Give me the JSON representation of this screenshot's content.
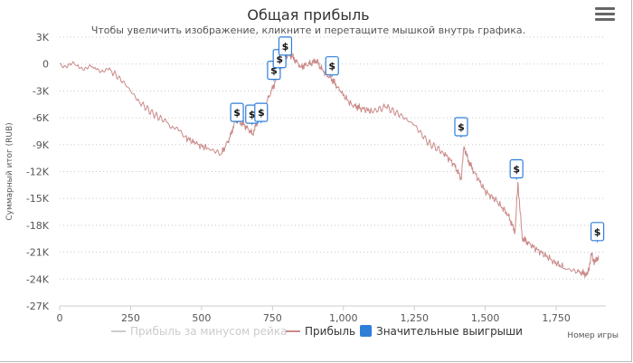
{
  "menu_icon": "hamburger-menu-icon",
  "chart_data": {
    "type": "line",
    "title": "Общая прибыль",
    "subtitle": "Чтобы увеличить изображение, кликните и перетащите мышкой внутрь графика.",
    "xlabel": "Номер игры",
    "ylabel": "Суммарный итог (RUB)",
    "xlim": [
      0,
      1925
    ],
    "ylim": [
      -27000,
      3000
    ],
    "x_ticks": [
      0,
      250,
      500,
      750,
      1000,
      1250,
      1500,
      1750
    ],
    "x_tick_labels": [
      "0",
      "250",
      "500",
      "750",
      "1,000",
      "1,250",
      "1,500",
      "1,750"
    ],
    "y_ticks": [
      3000,
      0,
      -3000,
      -6000,
      -9000,
      -12000,
      -15000,
      -18000,
      -21000,
      -24000,
      -27000
    ],
    "y_tick_labels": [
      "3K",
      "0",
      "-3K",
      "-6K",
      "-9K",
      "-12K",
      "-15K",
      "-18K",
      "-21K",
      "-24K",
      "-27K"
    ],
    "grid": "horizontal dotted",
    "legend_position": "bottom",
    "colors": {
      "profit": "#c98a88",
      "profit_without_rake": "#cccccc",
      "big_wins": "#2f7ed8",
      "grid": "#c8c8c8"
    },
    "series": [
      {
        "name": "Прибыль",
        "type": "line",
        "color": "#c98a88",
        "points": [
          [
            0,
            0
          ],
          [
            60,
            -200
          ],
          [
            120,
            -500
          ],
          [
            180,
            -700
          ],
          [
            230,
            -2200
          ],
          [
            280,
            -4200
          ],
          [
            330,
            -5600
          ],
          [
            380,
            -6500
          ],
          [
            440,
            -8100
          ],
          [
            480,
            -8900
          ],
          [
            520,
            -9400
          ],
          [
            570,
            -10000
          ],
          [
            600,
            -8200
          ],
          [
            620,
            -6200
          ],
          [
            650,
            -6800
          ],
          [
            680,
            -7800
          ],
          [
            700,
            -6200
          ],
          [
            730,
            -4200
          ],
          [
            760,
            -2000
          ],
          [
            775,
            -700
          ],
          [
            790,
            300
          ],
          [
            805,
            1200
          ],
          [
            820,
            800
          ],
          [
            850,
            -300
          ],
          [
            880,
            0
          ],
          [
            905,
            400
          ],
          [
            930,
            -900
          ],
          [
            960,
            -1700
          ],
          [
            990,
            -3100
          ],
          [
            1030,
            -4600
          ],
          [
            1060,
            -4900
          ],
          [
            1100,
            -5300
          ],
          [
            1150,
            -4800
          ],
          [
            1200,
            -5700
          ],
          [
            1250,
            -6800
          ],
          [
            1300,
            -8800
          ],
          [
            1350,
            -9800
          ],
          [
            1390,
            -11200
          ],
          [
            1415,
            -12800
          ],
          [
            1425,
            -9200
          ],
          [
            1440,
            -10800
          ],
          [
            1460,
            -12000
          ],
          [
            1500,
            -14200
          ],
          [
            1540,
            -15300
          ],
          [
            1580,
            -16800
          ],
          [
            1605,
            -18800
          ],
          [
            1615,
            -13200
          ],
          [
            1630,
            -19400
          ],
          [
            1660,
            -20200
          ],
          [
            1700,
            -21100
          ],
          [
            1740,
            -22000
          ],
          [
            1780,
            -22800
          ],
          [
            1830,
            -23200
          ],
          [
            1860,
            -23500
          ],
          [
            1875,
            -21200
          ],
          [
            1885,
            -22200
          ],
          [
            1900,
            -21400
          ]
        ]
      },
      {
        "name": "Прибыль за минусом рейка",
        "type": "line",
        "color": "#cccccc",
        "visible": false,
        "points": []
      },
      {
        "name": "Значительные выигрыши",
        "type": "flags",
        "color": "#2f7ed8",
        "symbol": "$",
        "points": [
          [
            625,
            -5400
          ],
          [
            678,
            -5600
          ],
          [
            710,
            -5400
          ],
          [
            755,
            -700
          ],
          [
            775,
            600
          ],
          [
            795,
            2000
          ],
          [
            960,
            -200
          ],
          [
            1415,
            -7000
          ],
          [
            1610,
            -11700
          ],
          [
            1895,
            -18700
          ]
        ]
      }
    ]
  }
}
